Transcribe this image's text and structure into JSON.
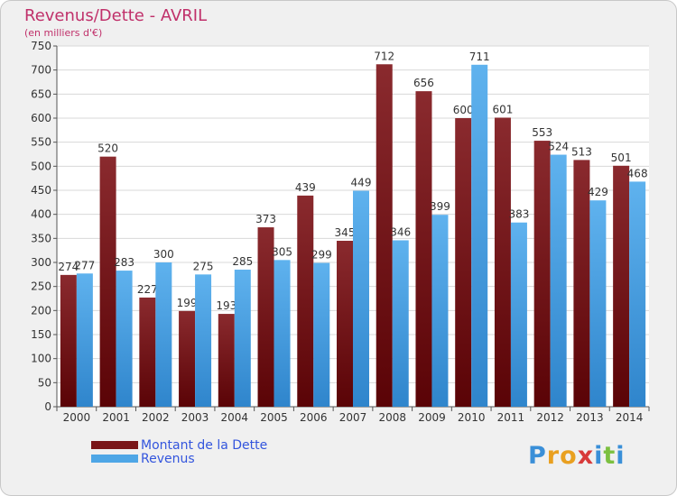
{
  "chart_data": {
    "type": "bar",
    "title": "Revenus/Dette - AVRIL",
    "subtitle": "(en milliers d'€)",
    "categories": [
      "2000",
      "2001",
      "2002",
      "2003",
      "2004",
      "2005",
      "2006",
      "2007",
      "2008",
      "2009",
      "2010",
      "2011",
      "2012",
      "2013",
      "2014"
    ],
    "series": [
      {
        "name": "Montant de la Dette",
        "color": "#7a1518",
        "values": [
          274,
          520,
          227,
          199,
          193,
          373,
          439,
          345,
          712,
          656,
          600,
          601,
          553,
          513,
          501
        ]
      },
      {
        "name": "Revenus",
        "color": "#4ea6e6",
        "values": [
          277,
          283,
          300,
          275,
          285,
          305,
          299,
          449,
          346,
          399,
          711,
          383,
          524,
          429,
          468
        ]
      }
    ],
    "ylim": [
      0,
      750
    ],
    "yticks": [
      0,
      50,
      100,
      150,
      200,
      250,
      300,
      350,
      400,
      450,
      500,
      550,
      600,
      650,
      700,
      750
    ],
    "grid": true,
    "legend": "bottom-left"
  },
  "logo": {
    "text": "Proxiti",
    "letter_colors": [
      "#3a8fd8",
      "#e9a020",
      "#e9a020",
      "#d83a3a",
      "#3a8fd8",
      "#7cc040",
      "#3a8fd8"
    ]
  }
}
